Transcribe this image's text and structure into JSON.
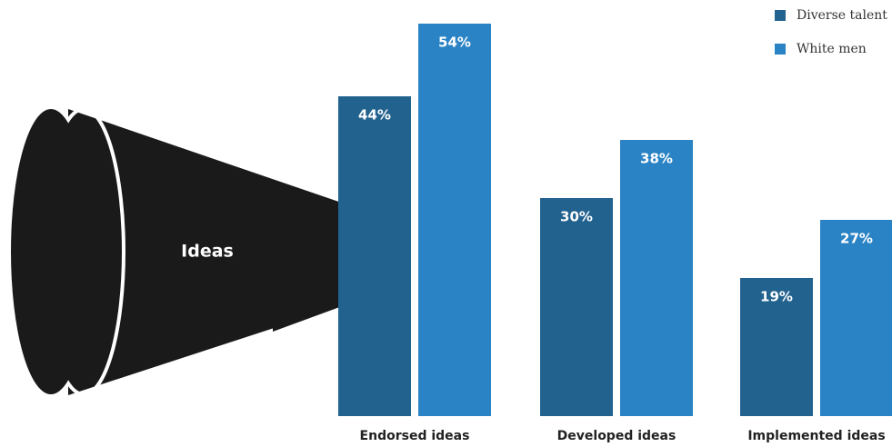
{
  "chart_data": {
    "type": "bar",
    "annotation": "Ideas",
    "categories": [
      "Endorsed ideas",
      "Developed ideas",
      "Implemented ideas"
    ],
    "series": [
      {
        "name": "Diverse talent",
        "color": "#22628f",
        "values": [
          44,
          30,
          19
        ],
        "value_labels": [
          "44%",
          "30%",
          "19%"
        ]
      },
      {
        "name": "White men",
        "color": "#2a83c4",
        "values": [
          54,
          38,
          27
        ],
        "value_labels": [
          "54%",
          "38%",
          "27%"
        ]
      }
    ],
    "legend": "top-right"
  }
}
